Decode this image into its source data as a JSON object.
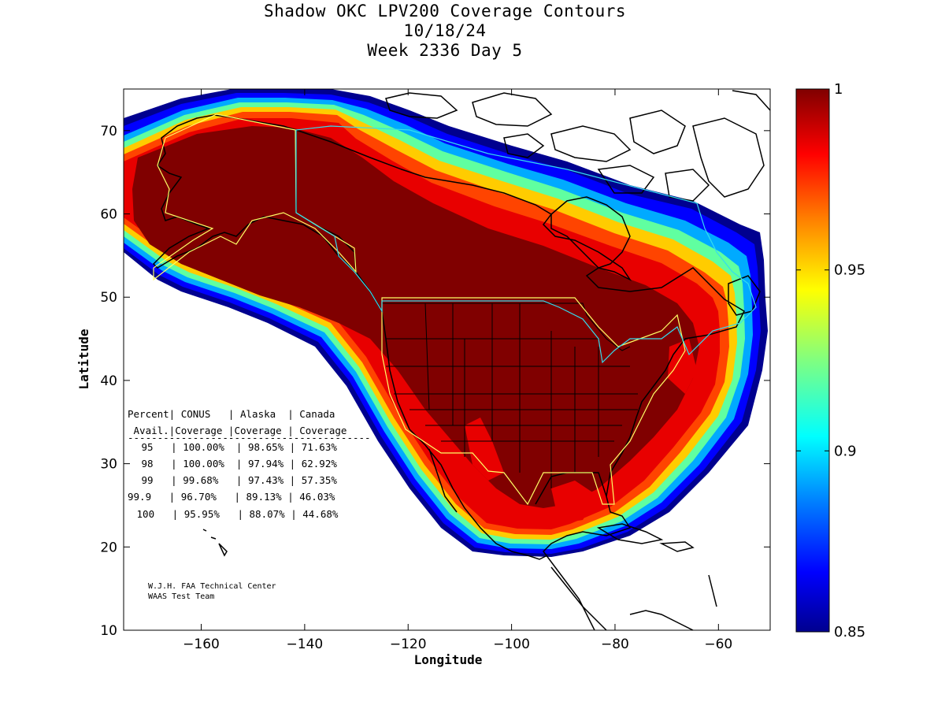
{
  "title": {
    "line1": "Shadow OKC LPV200 Coverage Contours",
    "line2": "10/18/24",
    "line3": "Week 2336 Day 5"
  },
  "axes": {
    "xlabel": "Longitude",
    "ylabel": "Latitude",
    "xlim": [
      -175,
      -50
    ],
    "ylim": [
      10,
      75
    ],
    "xticks": [
      -160,
      -140,
      -120,
      -100,
      -80,
      -60
    ],
    "yticks": [
      10,
      20,
      30,
      40,
      50,
      60,
      70
    ]
  },
  "colorbar": {
    "min": 0.85,
    "max": 1,
    "ticks": [
      {
        "value": 1,
        "label": "1"
      },
      {
        "value": 0.95,
        "label": "0.95"
      },
      {
        "value": 0.9,
        "label": "0.9"
      },
      {
        "value": 0.85,
        "label": "0.85"
      }
    ],
    "colormap": [
      "#00008f",
      "#0000ff",
      "#0080ff",
      "#00ffff",
      "#80ff80",
      "#ffff00",
      "#ff8000",
      "#ff0000",
      "#800000"
    ]
  },
  "coverage_table": {
    "header1": "Percent| CONUS   | Alaska  | Canada",
    "header2": " Avail.|Coverage |Coverage | Coverage",
    "separator": "-----------------------------------------",
    "rows": [
      " 95   | 100.00%  | 98.65% | 71.63%",
      " 98   | 100.00%  | 97.94% | 62.92%",
      " 99   | 99.68%   | 97.43% | 57.35%",
      "99.9   | 96.70%   | 89.13% | 46.03%",
      " 100   | 95.95%   | 88.07% | 44.68%"
    ]
  },
  "credit": {
    "line1": "W.J.H. FAA Technical Center",
    "line2": "WAAS Test Team"
  },
  "colors": {
    "coverage_max": "#800000",
    "boundary_yellow": "#ffff66",
    "boundary_cyan": "#33ddee",
    "coast": "#000000"
  }
}
